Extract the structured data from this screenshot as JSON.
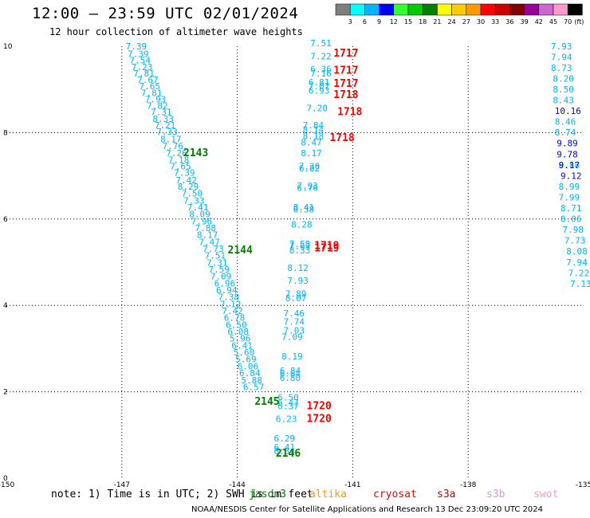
{
  "title": "12:00 – 23:59 UTC 02/01/2024",
  "subtitle": "12 hour collection of altimeter wave heights",
  "legend": {
    "colors": [
      "#7f7f7f",
      "#00ffff",
      "#00b4ff",
      "#0000ff",
      "#33ff33",
      "#00cc00",
      "#008000",
      "#ffff00",
      "#ffcc00",
      "#ff9900",
      "#ff0000",
      "#cc0000",
      "#800000",
      "#990099",
      "#cc66cc",
      "#ff99cc",
      "#000000"
    ],
    "labels": [
      "3",
      "6",
      "9",
      "12",
      "15",
      "18",
      "21",
      "24",
      "27",
      "30",
      "33",
      "36",
      "39",
      "42",
      "45",
      "70"
    ],
    "unit": "(ft)"
  },
  "note": "note: 1) Time is in UTC; 2) SWH is in feet",
  "satellites": [
    {
      "name": "jason3",
      "color": "#008000"
    },
    {
      "name": "altika",
      "color": "#ff9900"
    },
    {
      "name": "cryosat",
      "color": "#ff0000"
    },
    {
      "name": "s3a",
      "color": "#cc0000"
    },
    {
      "name": "s3b",
      "color": "#cc99ee"
    },
    {
      "name": "swot",
      "color": "#ff99cc"
    }
  ],
  "footer": "NOAA/NESDIS Center for Satellite Applications and Research  13 Dec 23:09:20 UTC 2024",
  "chart_data": {
    "type": "scatter",
    "xlim": [
      -150,
      -135
    ],
    "ylim": [
      0,
      10
    ],
    "x_ticks": [
      "-150",
      "-147",
      "-144",
      "-141",
      "-138",
      "-135"
    ],
    "y_ticks": [
      "0",
      "2",
      "4",
      "6",
      "8",
      "10"
    ],
    "grid": true,
    "tracks": [
      {
        "color": "#00b4ff",
        "points": [
          [
            -146.9,
            9.93,
            "7.39"
          ],
          [
            -146.85,
            9.75,
            "7.39"
          ],
          [
            -146.8,
            9.6,
            "7.54"
          ],
          [
            -146.75,
            9.45,
            "7.23"
          ],
          [
            -146.7,
            9.3,
            "7.81"
          ],
          [
            -146.6,
            9.15,
            "7.67"
          ],
          [
            -146.55,
            9.0,
            "7.65"
          ],
          [
            -146.5,
            8.85,
            "7.81"
          ],
          [
            -146.4,
            8.7,
            "7.93"
          ],
          [
            -146.35,
            8.55,
            "7.82"
          ],
          [
            -146.25,
            8.4,
            "7.31"
          ],
          [
            -146.2,
            8.25,
            "8.33"
          ],
          [
            -146.15,
            8.1,
            "7.21"
          ],
          [
            -146.1,
            7.95,
            "7.33"
          ],
          [
            -146.0,
            7.78,
            "8.17"
          ],
          [
            -145.95,
            7.62,
            "7.76"
          ],
          [
            -145.85,
            7.45,
            "7.26"
          ],
          [
            -145.8,
            7.3,
            "7.18"
          ],
          [
            -145.75,
            7.15,
            "7.65"
          ],
          [
            -145.65,
            7.0,
            "7.39"
          ],
          [
            -145.6,
            6.83,
            "7.42"
          ],
          [
            -145.55,
            6.68,
            "8.29"
          ],
          [
            -145.45,
            6.52,
            "7.50"
          ],
          [
            -145.4,
            6.36,
            "7.33"
          ],
          [
            -145.3,
            6.2,
            "7.41"
          ],
          [
            -145.25,
            6.04,
            "8.09"
          ],
          [
            -145.2,
            5.88,
            "7.96"
          ],
          [
            -145.1,
            5.72,
            "7.88"
          ],
          [
            -145.05,
            5.56,
            "8.17"
          ],
          [
            -145.0,
            5.4,
            "7.47"
          ],
          [
            -144.9,
            5.24,
            "7.73"
          ],
          [
            -144.85,
            5.08,
            "7.51"
          ],
          [
            -144.8,
            4.92,
            "7.31"
          ],
          [
            -144.75,
            4.76,
            "7.59"
          ],
          [
            -144.7,
            4.6,
            "7.09"
          ],
          [
            -144.6,
            4.44,
            "6.96"
          ],
          [
            -144.55,
            4.28,
            "6.94"
          ],
          [
            -144.5,
            4.12,
            "7.38"
          ],
          [
            -144.45,
            3.96,
            "7.12"
          ],
          [
            -144.4,
            3.8,
            "7.42"
          ],
          [
            -144.35,
            3.64,
            "6.78"
          ],
          [
            -144.3,
            3.48,
            "6.50"
          ],
          [
            -144.25,
            3.32,
            "6.08"
          ],
          [
            -144.2,
            3.16,
            "5.96"
          ],
          [
            -144.15,
            3.0,
            "6.41"
          ],
          [
            -144.1,
            2.84,
            "5.60"
          ],
          [
            -144.05,
            2.68,
            "5.69"
          ],
          [
            -144.0,
            2.52,
            "6.06"
          ],
          [
            -143.95,
            2.36,
            "6.84"
          ],
          [
            -143.9,
            2.2,
            "5.88"
          ],
          [
            -143.85,
            2.04,
            "6.57"
          ]
        ]
      },
      {
        "color": "#00b4ff",
        "points": [
          [
            -142.1,
            10.0,
            "7.51"
          ],
          [
            -142.1,
            9.7,
            "7.22"
          ],
          [
            -142.1,
            9.4,
            "6.36"
          ],
          [
            -142.1,
            9.3,
            "7.16"
          ],
          [
            -142.15,
            9.1,
            "6.81"
          ],
          [
            -142.15,
            9.0,
            "7.07"
          ],
          [
            -142.15,
            8.9,
            "6.93"
          ],
          [
            -142.2,
            8.5,
            "7.20"
          ],
          [
            -142.3,
            8.1,
            "7.84"
          ],
          [
            -142.3,
            8.0,
            "8.14"
          ],
          [
            -142.3,
            7.85,
            "8.18"
          ],
          [
            -142.35,
            7.7,
            "8.47"
          ],
          [
            -142.35,
            7.45,
            "8.17"
          ],
          [
            -142.4,
            7.15,
            "7.30"
          ],
          [
            -142.4,
            7.1,
            "6.82"
          ],
          [
            -142.45,
            6.7,
            "7.93"
          ],
          [
            -142.45,
            6.65,
            "6.76"
          ],
          [
            -142.55,
            6.2,
            "8.41"
          ],
          [
            -142.55,
            6.15,
            "8.38"
          ],
          [
            -142.6,
            5.8,
            "8.28"
          ],
          [
            -142.65,
            5.35,
            "7.58"
          ],
          [
            -142.65,
            5.3,
            "7.63"
          ],
          [
            -142.65,
            5.2,
            "8.33"
          ],
          [
            -142.7,
            4.8,
            "8.12"
          ],
          [
            -142.7,
            4.5,
            "7.93"
          ],
          [
            -142.75,
            4.2,
            "7.89"
          ],
          [
            -142.75,
            4.1,
            "8.07"
          ],
          [
            -142.8,
            3.75,
            "7.46"
          ],
          [
            -142.8,
            3.55,
            "7.74"
          ],
          [
            -142.8,
            3.35,
            "7.03"
          ],
          [
            -142.85,
            3.2,
            "7.09"
          ],
          [
            -142.85,
            2.75,
            "8.19"
          ],
          [
            -142.9,
            2.42,
            "6.84"
          ],
          [
            -142.9,
            2.35,
            "6.64"
          ],
          [
            -142.9,
            2.25,
            "6.80"
          ],
          [
            -142.95,
            1.8,
            "6.50"
          ],
          [
            -142.95,
            1.68,
            "6.47"
          ],
          [
            -142.95,
            1.6,
            "6.37"
          ],
          [
            -143.0,
            1.3,
            "6.23"
          ],
          [
            -143.05,
            0.85,
            "6.29"
          ],
          [
            -143.05,
            0.65,
            "6.41"
          ],
          [
            -143.05,
            0.55,
            "6.34"
          ]
        ]
      },
      {
        "color": "#00b4ff",
        "points": [
          [
            -135.85,
            9.93,
            "7.93"
          ],
          [
            -135.85,
            9.68,
            "7.94"
          ],
          [
            -135.85,
            9.43,
            "8.73"
          ],
          [
            -135.8,
            9.18,
            "8.20"
          ],
          [
            -135.8,
            8.93,
            "8.50"
          ],
          [
            -135.8,
            8.68,
            "8.43"
          ],
          [
            -135.75,
            8.18,
            "8.46"
          ],
          [
            -135.75,
            7.93,
            "8.74"
          ],
          [
            -135.65,
            7.18,
            "8.88"
          ],
          [
            -135.65,
            6.68,
            "8.99"
          ],
          [
            -135.65,
            6.43,
            "7.99"
          ],
          [
            -135.6,
            6.18,
            "8.71"
          ],
          [
            -135.6,
            5.93,
            "8.06"
          ],
          [
            -135.55,
            5.68,
            "7.98"
          ],
          [
            -135.5,
            5.43,
            "7.73"
          ],
          [
            -135.45,
            5.18,
            "8.08"
          ],
          [
            -135.45,
            4.93,
            "7.94"
          ],
          [
            -135.4,
            4.68,
            "7.22"
          ],
          [
            -135.35,
            4.43,
            "7.13"
          ]
        ]
      },
      {
        "color": "#0000ff",
        "points": [
          [
            -135.75,
            8.43,
            "10.16"
          ],
          [
            -135.7,
            7.68,
            "9.89"
          ],
          [
            -135.7,
            7.43,
            "9.78"
          ],
          [
            -135.65,
            7.18,
            "9.17"
          ],
          [
            -135.6,
            6.93,
            "9.12"
          ]
        ]
      },
      {
        "color": "#008000",
        "points": [
          [
            -145.4,
            7.45,
            "2143"
          ],
          [
            -144.25,
            5.2,
            "2144"
          ],
          [
            -143.55,
            1.7,
            "2145"
          ],
          [
            -143.0,
            0.5,
            "2146"
          ]
        ]
      },
      {
        "color": "#ff0000",
        "points": [
          [
            -141.5,
            9.76,
            "1717"
          ],
          [
            -141.5,
            9.36,
            "1717"
          ],
          [
            -141.5,
            9.06,
            "1717"
          ],
          [
            -141.5,
            8.8,
            "1718"
          ],
          [
            -141.4,
            8.4,
            "1718"
          ],
          [
            -141.6,
            7.8,
            "1718"
          ],
          [
            -142.0,
            5.3,
            "1719"
          ],
          [
            -142.0,
            5.25,
            "1719"
          ],
          [
            -142.2,
            1.6,
            "1720"
          ],
          [
            -142.2,
            1.3,
            "1720"
          ]
        ]
      }
    ]
  }
}
